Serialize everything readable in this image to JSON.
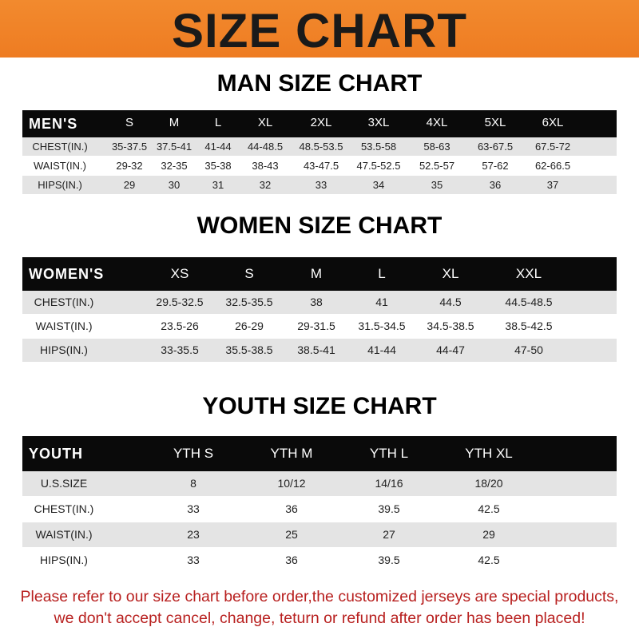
{
  "banner": {
    "title": "SIZE CHART",
    "color": "#f0832a"
  },
  "men": {
    "title": "MAN SIZE CHART",
    "header": [
      "MEN'S",
      "S",
      "M",
      "L",
      "XL",
      "2XL",
      "3XL",
      "4XL",
      "5XL",
      "6XL"
    ],
    "rows": [
      [
        "CHEST(IN.)",
        "35-37.5",
        "37.5-41",
        "41-44",
        "44-48.5",
        "48.5-53.5",
        "53.5-58",
        "58-63",
        "63-67.5",
        "67.5-72"
      ],
      [
        "WAIST(IN.)",
        "29-32",
        "32-35",
        "35-38",
        "38-43",
        "43-47.5",
        "47.5-52.5",
        "52.5-57",
        "57-62",
        "62-66.5"
      ],
      [
        "HIPS(IN.)",
        "29",
        "30",
        "31",
        "32",
        "33",
        "34",
        "35",
        "36",
        "37"
      ]
    ]
  },
  "women": {
    "title": "WOMEN SIZE CHART",
    "header": [
      "WOMEN'S",
      "XS",
      "S",
      "M",
      "L",
      "XL",
      "XXL"
    ],
    "rows": [
      [
        "CHEST(IN.)",
        "29.5-32.5",
        "32.5-35.5",
        "38",
        "41",
        "44.5",
        "44.5-48.5"
      ],
      [
        "WAIST(IN.)",
        "23.5-26",
        "26-29",
        "29-31.5",
        "31.5-34.5",
        "34.5-38.5",
        "38.5-42.5"
      ],
      [
        "HIPS(IN.)",
        "33-35.5",
        "35.5-38.5",
        "38.5-41",
        "41-44",
        "44-47",
        "47-50"
      ]
    ]
  },
  "youth": {
    "title": "YOUTH SIZE CHART",
    "header": [
      "YOUTH",
      "YTH S",
      "YTH M",
      "YTH L",
      "YTH XL"
    ],
    "rows": [
      [
        "U.S.SIZE",
        "8",
        "10/12",
        "14/16",
        "18/20"
      ],
      [
        "CHEST(IN.)",
        "33",
        "36",
        "39.5",
        "42.5"
      ],
      [
        "WAIST(IN.)",
        "23",
        "25",
        "27",
        "29"
      ],
      [
        "HIPS(IN.)",
        "33",
        "36",
        "39.5",
        "42.5"
      ]
    ]
  },
  "notice": {
    "line1": "Please refer to our size chart before order,the customized jerseys are special products,",
    "line2": "we don't accept cancel, change, teturn or refund after order has been placed!"
  }
}
